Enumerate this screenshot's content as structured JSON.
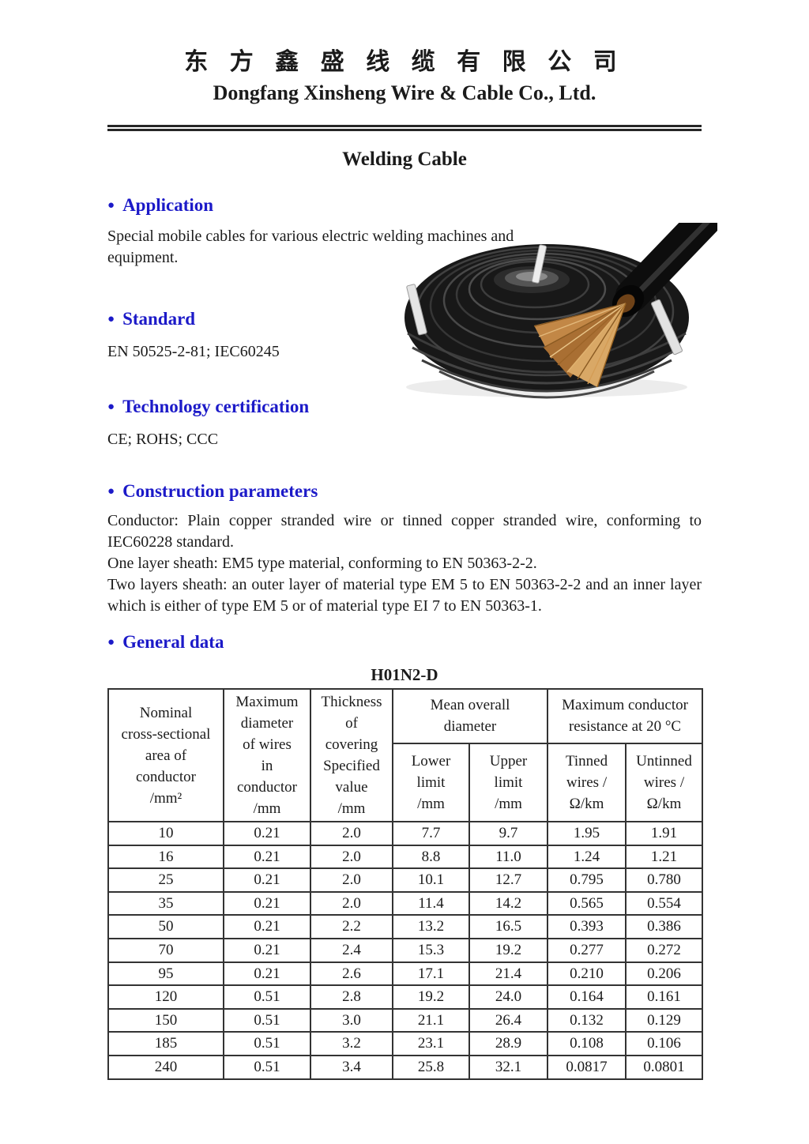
{
  "header": {
    "company_zh": "东 方 鑫 盛 线 缆 有 限 公 司",
    "company_en": "Dongfang Xinsheng Wire & Cable Co., Ltd.",
    "product_title": "Welding Cable"
  },
  "bullet_glyph": "●",
  "colors": {
    "heading_blue": "#1c1ac8",
    "text": "#1b1b1b",
    "copper": "#c28746",
    "cable_black": "#141414"
  },
  "icons": {
    "photo": "welding-cable-coil-photo"
  },
  "sections": {
    "application": {
      "heading": "Application",
      "body": "Special mobile cables for various electric welding machines and equipment."
    },
    "standard": {
      "heading": "Standard",
      "body": "EN 50525-2-81; IEC60245"
    },
    "certification": {
      "heading": "Technology certification",
      "body": "CE; ROHS; CCC"
    },
    "construction": {
      "heading": "Construction parameters",
      "body_lines": [
        "Conductor: Plain copper stranded wire or tinned copper stranded wire, conforming to IEC60228 standard.",
        "One layer sheath: EM5 type material, conforming to EN 50363-2-2.",
        "Two layers sheath: an outer layer of material type EM 5 to EN 50363-2-2 and an inner layer which is either of type EM 5 or of material type EI 7 to EN 50363-1."
      ]
    },
    "general_data": {
      "heading": "General data"
    }
  },
  "table": {
    "title": "H01N2-D",
    "header": {
      "col_nominal": [
        "Nominal",
        "cross-sectional",
        "area of",
        "conductor",
        "/mm²"
      ],
      "col_max_diameter": [
        "Maximum",
        "diameter",
        "of wires",
        "in",
        "conductor",
        "/mm"
      ],
      "col_thickness": [
        "Thickness",
        "of",
        "covering",
        "Specified",
        "value",
        "/mm"
      ],
      "group_mean_overall": [
        "Mean overall",
        "diameter"
      ],
      "group_resistance": [
        "Maximum conductor",
        "resistance at 20 °C"
      ],
      "sub_lower": [
        "Lower",
        "limit",
        "/mm"
      ],
      "sub_upper": [
        "Upper",
        "limit",
        "/mm"
      ],
      "sub_tinned": [
        "Tinned",
        "wires /",
        "Ω/km"
      ],
      "sub_untinned": [
        "Untinned",
        "wires /",
        "Ω/km"
      ]
    },
    "rows": [
      [
        "10",
        "0.21",
        "2.0",
        "7.7",
        "9.7",
        "1.95",
        "1.91"
      ],
      [
        "16",
        "0.21",
        "2.0",
        "8.8",
        "11.0",
        "1.24",
        "1.21"
      ],
      [
        "25",
        "0.21",
        "2.0",
        "10.1",
        "12.7",
        "0.795",
        "0.780"
      ],
      [
        "35",
        "0.21",
        "2.0",
        "11.4",
        "14.2",
        "0.565",
        "0.554"
      ],
      [
        "50",
        "0.21",
        "2.2",
        "13.2",
        "16.5",
        "0.393",
        "0.386"
      ],
      [
        "70",
        "0.21",
        "2.4",
        "15.3",
        "19.2",
        "0.277",
        "0.272"
      ],
      [
        "95",
        "0.21",
        "2.6",
        "17.1",
        "21.4",
        "0.210",
        "0.206"
      ],
      [
        "120",
        "0.51",
        "2.8",
        "19.2",
        "24.0",
        "0.164",
        "0.161"
      ],
      [
        "150",
        "0.51",
        "3.0",
        "21.1",
        "26.4",
        "0.132",
        "0.129"
      ],
      [
        "185",
        "0.51",
        "3.2",
        "23.1",
        "28.9",
        "0.108",
        "0.106"
      ],
      [
        "240",
        "0.51",
        "3.4",
        "25.8",
        "32.1",
        "0.0817",
        "0.0801"
      ]
    ]
  }
}
